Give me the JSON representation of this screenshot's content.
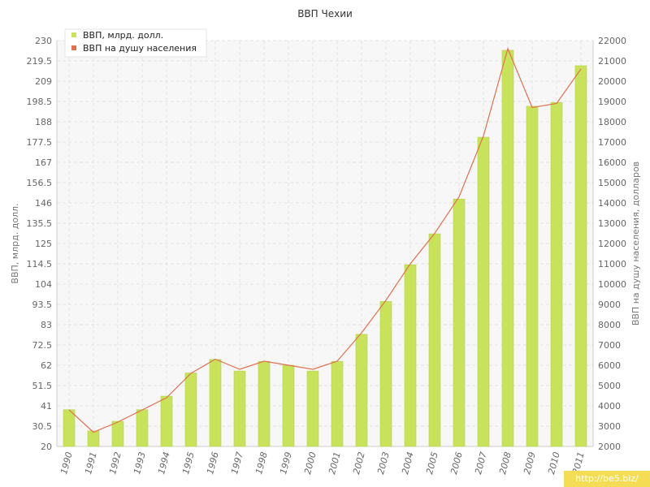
{
  "chart_data": {
    "type": "bar",
    "title": "ВВП Чехии",
    "categories": [
      "1990",
      "1991",
      "1992",
      "1993",
      "1994",
      "1995",
      "1996",
      "1997",
      "1998",
      "1999",
      "2000",
      "2001",
      "2002",
      "2003",
      "2004",
      "2005",
      "2006",
      "2007",
      "2008",
      "2009",
      "2010",
      "2011"
    ],
    "series": [
      {
        "name": "ВВП, млрд. долл.",
        "type": "bar",
        "axis": "left",
        "color": "#c8e35a",
        "values": [
          39,
          28,
          33,
          39,
          46,
          58,
          65,
          59,
          64,
          62,
          59,
          64,
          78,
          95,
          114,
          130,
          148,
          180,
          225,
          196,
          198,
          217
        ]
      },
      {
        "name": "ВВП на душу населения",
        "type": "line",
        "axis": "right",
        "color": "#e07050",
        "values": [
          3800,
          2700,
          3200,
          3800,
          4400,
          5600,
          6300,
          5800,
          6200,
          6000,
          5800,
          6200,
          7600,
          9200,
          11000,
          12500,
          14300,
          17300,
          21600,
          18700,
          18900,
          20600
        ]
      }
    ],
    "ylabel": "ВВП, млрд. долл.",
    "ylabel_right": "ВВП на душу населения, долларов",
    "ylim": [
      20,
      230
    ],
    "ylim_right": [
      2000,
      22000
    ],
    "yticks": [
      "20",
      "30.5",
      "41",
      "51.5",
      "62",
      "72.5",
      "83",
      "93.5",
      "104",
      "114.5",
      "125",
      "135.5",
      "146",
      "156.5",
      "167",
      "177.5",
      "188",
      "198.5",
      "209",
      "219.5",
      "230"
    ],
    "yticks_right": [
      "2000",
      "3000",
      "4000",
      "5000",
      "6000",
      "7000",
      "8000",
      "9000",
      "10000",
      "11000",
      "12000",
      "13000",
      "14000",
      "15000",
      "16000",
      "17000",
      "18000",
      "19000",
      "20000",
      "21000",
      "22000"
    ],
    "grid": true,
    "legend_position": "top-left"
  },
  "watermark": "http://be5.biz/"
}
